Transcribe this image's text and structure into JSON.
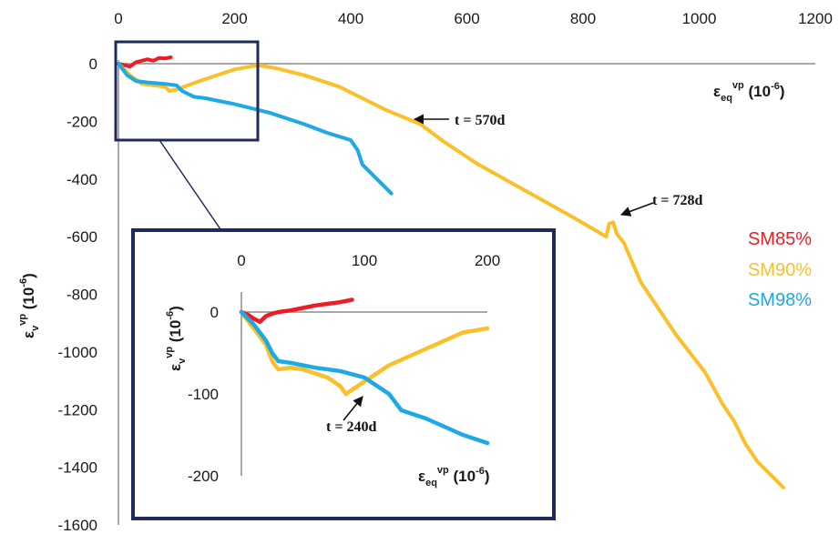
{
  "colors": {
    "SM85%": "#ee1c25",
    "SM90%": "#fbbf2a",
    "SM98%": "#1da8e6",
    "frame": "#1f2a5a"
  },
  "chart_data": [
    {
      "type": "line",
      "title": "",
      "xlabel": {
        "base": "ε",
        "sub": "eq",
        "sup": "vp",
        "unit": "(10",
        "unit_sup": "-6",
        "tail": ")"
      },
      "ylabel": {
        "base": "ε",
        "sub": "v",
        "sup": "vp",
        "unit": "(10",
        "unit_sup": "-6",
        "tail": ")"
      },
      "xlim": [
        0,
        1200
      ],
      "ylim": [
        -1600,
        0
      ],
      "xticks": [
        "0",
        "200",
        "400",
        "600",
        "800",
        "1000",
        "1200"
      ],
      "yticks": [
        "0",
        "-200",
        "-400",
        "-600",
        "-800",
        "-1000",
        "-1200",
        "-1400",
        "-1600"
      ],
      "legend": [
        "SM85%",
        "SM90%",
        "SM98%"
      ],
      "legend_position": "right",
      "series": [
        {
          "name": "SM85%",
          "x": [
            0,
            10,
            20,
            30,
            40,
            50,
            60,
            70,
            80,
            90
          ],
          "y": [
            0,
            -5,
            -10,
            5,
            10,
            15,
            10,
            20,
            18,
            22
          ]
        },
        {
          "name": "SM90%",
          "x": [
            0,
            20,
            40,
            60,
            80,
            88,
            100,
            140,
            200,
            240,
            270,
            320,
            380,
            420,
            460,
            520,
            560,
            620,
            700,
            780,
            840,
            845,
            852,
            858,
            870,
            900,
            960,
            1010,
            1040,
            1060,
            1080,
            1100,
            1130,
            1145
          ],
          "y": [
            0,
            -40,
            -70,
            -75,
            -80,
            -95,
            -90,
            -60,
            -20,
            -5,
            -15,
            -40,
            -80,
            -120,
            -160,
            -210,
            -270,
            -350,
            -440,
            -530,
            -600,
            -555,
            -550,
            -590,
            -620,
            -760,
            -940,
            -1070,
            -1180,
            -1240,
            -1320,
            -1380,
            -1440,
            -1470
          ]
        },
        {
          "name": "SM98%",
          "x": [
            0,
            15,
            30,
            50,
            80,
            100,
            110,
            130,
            150,
            200,
            260,
            320,
            360,
            400,
            412,
            420,
            440,
            460,
            470
          ],
          "y": [
            0,
            -40,
            -60,
            -65,
            -70,
            -75,
            -95,
            -115,
            -120,
            -140,
            -170,
            -210,
            -240,
            -265,
            -300,
            -350,
            -390,
            -430,
            -450
          ]
        }
      ],
      "annotations": [
        "t = 570d",
        "t = 728d"
      ]
    },
    {
      "type": "line",
      "title": "",
      "xlabel": {
        "base": "ε",
        "sub": "eq",
        "sup": "vp",
        "unit": "(10",
        "unit_sup": "-6",
        "tail": ")"
      },
      "ylabel": {
        "base": "ε",
        "sub": "v",
        "sup": "vp",
        "unit": "(10",
        "unit_sup": "-6",
        "tail": ")"
      },
      "xlim": [
        0,
        200
      ],
      "ylim": [
        -200,
        0
      ],
      "xticks": [
        "0",
        "100",
        "200"
      ],
      "yticks": [
        "0",
        "-100",
        "-200"
      ],
      "series": [
        {
          "name": "SM85%",
          "x": [
            0,
            5,
            10,
            15,
            20,
            25,
            30,
            40,
            50,
            60,
            70,
            80,
            90
          ],
          "y": [
            0,
            -3,
            -8,
            -12,
            -5,
            -2,
            0,
            2,
            5,
            8,
            10,
            12,
            15
          ]
        },
        {
          "name": "SM90%",
          "x": [
            0,
            10,
            20,
            25,
            30,
            40,
            50,
            60,
            70,
            80,
            85,
            90,
            100,
            120,
            150,
            180,
            200
          ],
          "y": [
            0,
            -20,
            -40,
            -60,
            -70,
            -68,
            -70,
            -75,
            -80,
            -90,
            -100,
            -95,
            -85,
            -65,
            -45,
            -25,
            -20
          ]
        },
        {
          "name": "SM98%",
          "x": [
            0,
            10,
            20,
            25,
            30,
            40,
            60,
            80,
            100,
            110,
            120,
            125,
            130,
            150,
            180,
            200
          ],
          "y": [
            0,
            -15,
            -35,
            -50,
            -60,
            -62,
            -68,
            -72,
            -80,
            -90,
            -100,
            -110,
            -120,
            -130,
            -150,
            -160
          ]
        }
      ],
      "annotations": [
        "t = 240d"
      ]
    }
  ]
}
